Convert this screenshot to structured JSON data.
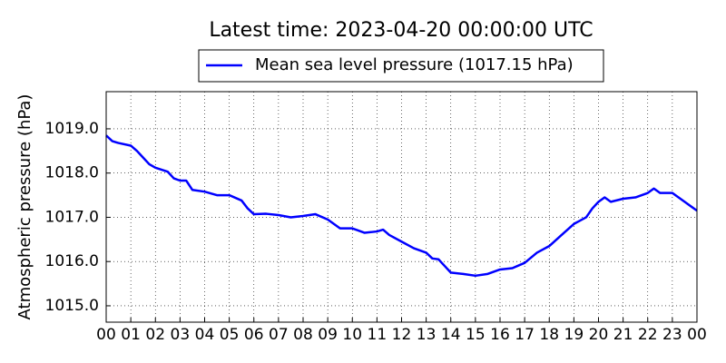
{
  "chart_data": {
    "type": "line",
    "title": "Latest time: 2023-04-20 00:00:00 UTC",
    "y_label": "Atmospheric pressure (hPa)",
    "x": [
      0,
      0.25,
      0.5,
      1,
      1.25,
      1.5,
      1.75,
      2,
      2.5,
      2.75,
      3,
      3.25,
      3.5,
      4,
      4.5,
      5,
      5.5,
      5.75,
      6,
      6.5,
      7,
      7.5,
      8,
      8.5,
      9,
      9.25,
      9.5,
      10,
      10.5,
      11,
      11.25,
      11.5,
      12,
      12.5,
      13,
      13.25,
      13.5,
      13.75,
      14,
      14.5,
      15,
      15.5,
      16,
      16.5,
      17,
      17.5,
      18,
      18.5,
      19,
      19.5,
      19.75,
      20,
      20.25,
      20.5,
      21,
      21.5,
      22,
      22.25,
      22.5,
      23,
      23.5,
      24
    ],
    "series": [
      {
        "name": "Mean sea level pressure (1017.15 hPa)",
        "color": "#0000ff",
        "values": [
          1018.85,
          1018.72,
          1018.68,
          1018.62,
          1018.5,
          1018.35,
          1018.2,
          1018.12,
          1018.03,
          1017.88,
          1017.83,
          1017.83,
          1017.62,
          1017.58,
          1017.5,
          1017.5,
          1017.38,
          1017.2,
          1017.07,
          1017.08,
          1017.05,
          1017.0,
          1017.03,
          1017.07,
          1016.95,
          1016.85,
          1016.75,
          1016.75,
          1016.65,
          1016.68,
          1016.72,
          1016.6,
          1016.45,
          1016.3,
          1016.2,
          1016.07,
          1016.05,
          1015.9,
          1015.75,
          1015.72,
          1015.68,
          1015.72,
          1015.82,
          1015.85,
          1015.97,
          1016.2,
          1016.35,
          1016.6,
          1016.85,
          1017.0,
          1017.2,
          1017.35,
          1017.45,
          1017.35,
          1017.42,
          1017.45,
          1017.55,
          1017.65,
          1017.55,
          1017.55,
          1017.35,
          1017.15
        ]
      }
    ],
    "xlim": [
      0,
      24
    ],
    "xticks": [
      {
        "value": 0,
        "label": "00"
      },
      {
        "value": 1,
        "label": "01"
      },
      {
        "value": 2,
        "label": "02"
      },
      {
        "value": 3,
        "label": "03"
      },
      {
        "value": 4,
        "label": "04"
      },
      {
        "value": 5,
        "label": "05"
      },
      {
        "value": 6,
        "label": "06"
      },
      {
        "value": 7,
        "label": "07"
      },
      {
        "value": 8,
        "label": "08"
      },
      {
        "value": 9,
        "label": "09"
      },
      {
        "value": 10,
        "label": "10"
      },
      {
        "value": 11,
        "label": "11"
      },
      {
        "value": 12,
        "label": "12"
      },
      {
        "value": 13,
        "label": "13"
      },
      {
        "value": 14,
        "label": "14"
      },
      {
        "value": 15,
        "label": "15"
      },
      {
        "value": 16,
        "label": "16"
      },
      {
        "value": 17,
        "label": "17"
      },
      {
        "value": 18,
        "label": "18"
      },
      {
        "value": 19,
        "label": "19"
      },
      {
        "value": 20,
        "label": "20"
      },
      {
        "value": 21,
        "label": "21"
      },
      {
        "value": 22,
        "label": "22"
      },
      {
        "value": 23,
        "label": "23"
      },
      {
        "value": 24,
        "label": "00"
      }
    ],
    "ylim": [
      1014.63,
      1019.84
    ],
    "yticks": [
      {
        "value": 1015,
        "label": "1015.0"
      },
      {
        "value": 1016,
        "label": "1016.0"
      },
      {
        "value": 1017,
        "label": "1017.0"
      },
      {
        "value": 1018,
        "label": "1018.0"
      },
      {
        "value": 1019,
        "label": "1019.0"
      }
    ],
    "grid": true
  }
}
